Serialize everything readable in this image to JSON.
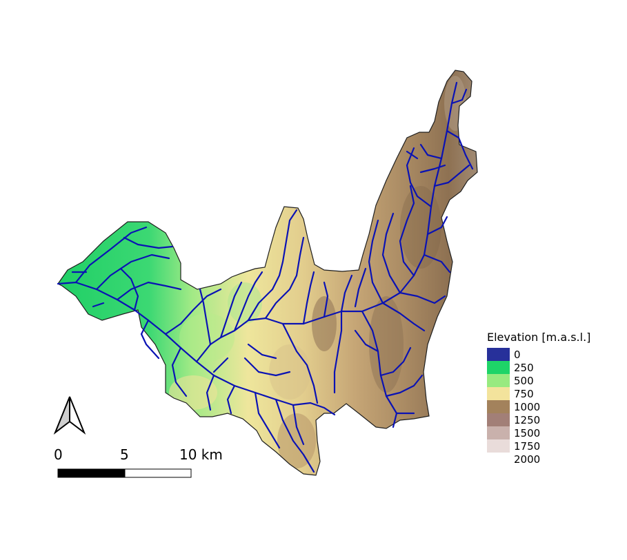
{
  "legend": {
    "title": "Elevation [m.a.s.l.]",
    "items": [
      {
        "label": "0",
        "color": "#27309a"
      },
      {
        "label": "250",
        "color": "#1ed468"
      },
      {
        "label": "500",
        "color": "#98ea80"
      },
      {
        "label": "750",
        "color": "#f3e39c"
      },
      {
        "label": "1000",
        "color": "#a3825c"
      },
      {
        "label": "1250",
        "color": "#a27f77"
      },
      {
        "label": "1500",
        "color": "#c9b1ac"
      },
      {
        "label": "1750",
        "color": "#e9dcda"
      },
      {
        "label": "2000",
        "color": "#ffffff"
      }
    ]
  },
  "scale_bar": {
    "labels": [
      "0",
      "5",
      "10 km"
    ]
  },
  "north_arrow": {
    "icon": "north-arrow-icon"
  },
  "colors": {
    "river": "#0a12b4",
    "outline": "#1e1e1e"
  }
}
